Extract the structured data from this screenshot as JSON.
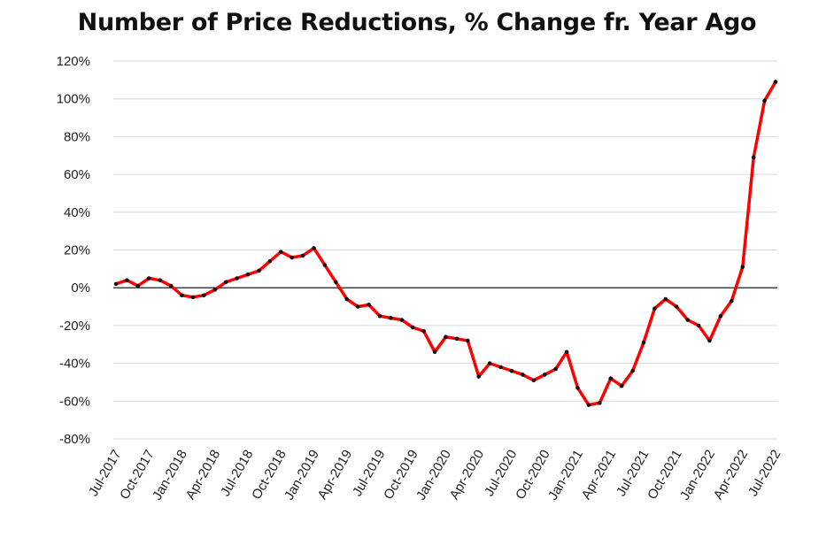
{
  "chart_data": {
    "type": "line",
    "title": "Number of Price Reductions, % Change fr. Year Ago",
    "xlabel": "",
    "ylabel": "",
    "ylim": [
      -80,
      120
    ],
    "y_ticks": [
      120,
      100,
      80,
      60,
      40,
      20,
      0,
      -20,
      -40,
      -60,
      -80
    ],
    "y_tick_labels": [
      "120%",
      "100%",
      "80%",
      "60%",
      "40%",
      "20%",
      "0%",
      "-20%",
      "-40%",
      "-60%",
      "-80%"
    ],
    "x_tick_labels": [
      "Jul-2017",
      "Oct-2017",
      "Jan-2018",
      "Apr-2018",
      "Jul-2018",
      "Oct-2018",
      "Jan-2019",
      "Apr-2019",
      "Jul-2019",
      "Oct-2019",
      "Jan-2020",
      "Apr-2020",
      "Jul-2020",
      "Oct-2020",
      "Jan-2021",
      "Apr-2021",
      "Jul-2021",
      "Oct-2021",
      "Jan-2022",
      "Apr-2022",
      "Jul-2022"
    ],
    "grid": true,
    "zero_line": true,
    "line_color": "#ff0000",
    "marker_color": "#111111",
    "series": [
      {
        "x": [
          "Jul-2017",
          "Aug-2017",
          "Sep-2017",
          "Oct-2017",
          "Nov-2017",
          "Dec-2017",
          "Jan-2018",
          "Feb-2018",
          "Mar-2018",
          "Apr-2018",
          "May-2018",
          "Jun-2018",
          "Jul-2018",
          "Aug-2018",
          "Sep-2018",
          "Oct-2018",
          "Nov-2018",
          "Dec-2018",
          "Jan-2019",
          "Feb-2019",
          "Mar-2019",
          "Apr-2019",
          "May-2019",
          "Jun-2019",
          "Jul-2019",
          "Aug-2019",
          "Sep-2019",
          "Oct-2019",
          "Nov-2019",
          "Dec-2019",
          "Jan-2020",
          "Feb-2020",
          "Mar-2020",
          "Apr-2020",
          "May-2020",
          "Jun-2020",
          "Jul-2020",
          "Aug-2020",
          "Sep-2020",
          "Oct-2020",
          "Nov-2020",
          "Dec-2020",
          "Jan-2021",
          "Feb-2021",
          "Mar-2021",
          "Apr-2021",
          "May-2021",
          "Jun-2021",
          "Jul-2021",
          "Aug-2021",
          "Sep-2021",
          "Oct-2021",
          "Nov-2021",
          "Dec-2021",
          "Jan-2022",
          "Feb-2022",
          "Mar-2022",
          "Apr-2022",
          "May-2022",
          "Jun-2022",
          "Jul-2022"
        ],
        "values": [
          2,
          4,
          1,
          5,
          4,
          1,
          -4,
          -5,
          -4,
          -1,
          3,
          5,
          7,
          9,
          14,
          19,
          16,
          17,
          21,
          12,
          3,
          -6,
          -10,
          -9,
          -15,
          -16,
          -17,
          -21,
          -23,
          -34,
          -26,
          -27,
          -28,
          -47,
          -40,
          -42,
          -44,
          -46,
          -49,
          -46,
          -43,
          -34,
          -53,
          -62,
          -61,
          -48,
          -52,
          -44,
          -29,
          -11,
          -6,
          -10,
          -17,
          -20,
          -28,
          -15,
          -7,
          11,
          69,
          99,
          109
        ]
      }
    ]
  }
}
